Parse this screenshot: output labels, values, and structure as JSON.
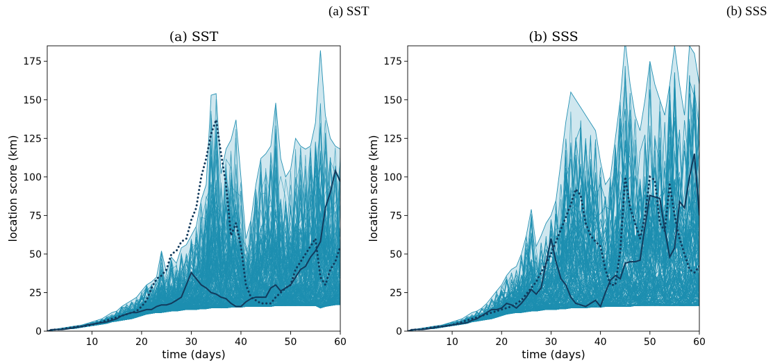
{
  "figure": {
    "top_caption_left": "(a) SST",
    "top_caption_right": "(b) SSS"
  },
  "style": {
    "fan_line_color": "#1e8fb0",
    "envelope_fill": "#cfe7ef",
    "envelope_edge": "#2591b3",
    "median_line_color": "#123a5c",
    "dotted_line_color": "#123a5c"
  },
  "chart_data": [
    {
      "type": "line",
      "title": "(a) SST",
      "xlabel": "time (days)",
      "ylabel": "location score (km)",
      "xlim": [
        1,
        60
      ],
      "ylim": [
        0,
        185
      ],
      "xticks": [
        10,
        20,
        30,
        40,
        50,
        60
      ],
      "yticks": [
        0,
        25,
        50,
        75,
        100,
        125,
        150,
        175
      ],
      "grid": false,
      "ensemble_size": 300,
      "series": [
        {
          "role": "ensemble-max",
          "x": [
            1,
            2,
            3,
            4,
            5,
            6,
            7,
            8,
            9,
            10,
            11,
            12,
            13,
            14,
            15,
            16,
            17,
            18,
            19,
            20,
            21,
            22,
            23,
            24,
            25,
            26,
            27,
            28,
            29,
            30,
            31,
            32,
            33,
            34,
            35,
            36,
            37,
            38,
            39,
            40,
            41,
            42,
            43,
            44,
            45,
            46,
            47,
            48,
            49,
            50,
            51,
            52,
            53,
            54,
            55,
            56,
            57,
            58,
            59,
            60
          ],
          "values": [
            0,
            1,
            1.5,
            2,
            2.5,
            3,
            3.5,
            4,
            5,
            6,
            7,
            8,
            10,
            12,
            13,
            16,
            18,
            20,
            22,
            26,
            30,
            32,
            35,
            52,
            38,
            48,
            44,
            54,
            56,
            62,
            68,
            85,
            95,
            153,
            154,
            102,
            118,
            124,
            137,
            100,
            60,
            72,
            95,
            112,
            115,
            120,
            148,
            112,
            100,
            105,
            125,
            120,
            118,
            120,
            135,
            182,
            140,
            125,
            120,
            118
          ]
        },
        {
          "role": "ensemble-min",
          "x": [
            1,
            2,
            3,
            4,
            5,
            6,
            7,
            8,
            9,
            10,
            11,
            12,
            13,
            14,
            15,
            16,
            17,
            18,
            19,
            20,
            21,
            22,
            23,
            24,
            25,
            26,
            27,
            28,
            29,
            30,
            31,
            32,
            33,
            34,
            35,
            36,
            37,
            38,
            39,
            40,
            41,
            42,
            43,
            44,
            45,
            46,
            47,
            48,
            49,
            50,
            51,
            52,
            53,
            54,
            55,
            56,
            57,
            58,
            59,
            60
          ],
          "values": [
            0,
            0.5,
            1,
            1,
            1.5,
            1.5,
            2,
            2.5,
            3,
            3.5,
            4,
            4.5,
            5,
            6,
            6.5,
            7,
            7.5,
            8,
            9,
            10,
            11,
            11.5,
            12,
            12,
            12.5,
            13,
            13,
            13.5,
            14,
            14,
            14,
            14.5,
            14.5,
            15,
            15,
            15,
            15,
            15.5,
            15.5,
            15.5,
            16,
            16,
            16,
            16,
            16,
            16,
            16.5,
            16.5,
            16.5,
            16.5,
            16.5,
            16.5,
            16.5,
            16.5,
            16.5,
            15,
            16,
            16.5,
            17,
            17
          ]
        },
        {
          "role": "median",
          "x": [
            1,
            2,
            3,
            4,
            5,
            6,
            7,
            8,
            9,
            10,
            11,
            12,
            13,
            14,
            15,
            16,
            17,
            18,
            19,
            20,
            21,
            22,
            23,
            24,
            25,
            26,
            27,
            28,
            29,
            30,
            31,
            32,
            33,
            34,
            35,
            36,
            37,
            38,
            39,
            40,
            41,
            42,
            43,
            44,
            45,
            46,
            47,
            48,
            49,
            50,
            51,
            52,
            53,
            54,
            55,
            56,
            57,
            58,
            59,
            60
          ],
          "values": [
            0,
            1,
            1,
            1,
            1.5,
            2,
            2.5,
            3,
            4,
            4.5,
            5,
            5.5,
            6,
            7,
            8,
            10,
            11,
            12,
            12,
            13,
            14,
            14,
            16,
            17,
            17,
            18,
            20,
            22,
            30,
            38,
            34,
            30,
            28,
            25,
            24,
            22,
            21,
            18,
            16,
            16,
            19,
            21,
            22,
            22,
            22,
            28,
            30,
            26,
            28,
            30,
            35,
            40,
            42,
            48,
            52,
            58,
            80,
            90,
            104,
            97
          ]
        },
        {
          "role": "dotted",
          "x": [
            1,
            2,
            3,
            4,
            5,
            6,
            7,
            8,
            9,
            10,
            11,
            12,
            13,
            14,
            15,
            16,
            17,
            18,
            19,
            20,
            21,
            22,
            23,
            24,
            25,
            26,
            27,
            28,
            29,
            30,
            31,
            32,
            33,
            34,
            35,
            36,
            37,
            38,
            39,
            40,
            41,
            42,
            43,
            44,
            45,
            46,
            47,
            48,
            49,
            50,
            51,
            52,
            53,
            54,
            55,
            56,
            57,
            58,
            59,
            60
          ],
          "values": [
            0,
            1,
            1,
            1.5,
            2,
            2.5,
            3,
            3,
            3.5,
            4,
            5,
            6,
            7,
            8,
            9,
            10,
            11,
            12,
            13,
            16,
            20,
            28,
            34,
            36,
            40,
            50,
            52,
            58,
            60,
            72,
            80,
            100,
            112,
            128,
            137,
            115,
            95,
            62,
            70,
            55,
            30,
            22,
            20,
            18,
            18,
            18,
            22,
            25,
            28,
            30,
            40,
            45,
            50,
            55,
            60,
            35,
            30,
            40,
            45,
            55
          ]
        }
      ]
    },
    {
      "type": "line",
      "title": "(b) SSS",
      "xlabel": "time (days)",
      "ylabel": "location score (km)",
      "xlim": [
        1,
        60
      ],
      "ylim": [
        0,
        185
      ],
      "xticks": [
        10,
        20,
        30,
        40,
        50,
        60
      ],
      "yticks": [
        0,
        25,
        50,
        75,
        100,
        125,
        150,
        175
      ],
      "grid": false,
      "ensemble_size": 300,
      "series": [
        {
          "role": "ensemble-max",
          "x": [
            1,
            2,
            3,
            4,
            5,
            6,
            7,
            8,
            9,
            10,
            11,
            12,
            13,
            14,
            15,
            16,
            17,
            18,
            19,
            20,
            21,
            22,
            23,
            24,
            25,
            26,
            27,
            28,
            29,
            30,
            31,
            32,
            33,
            34,
            35,
            36,
            37,
            38,
            39,
            40,
            41,
            42,
            43,
            44,
            45,
            46,
            47,
            48,
            49,
            50,
            51,
            52,
            53,
            54,
            55,
            56,
            57,
            58,
            59,
            60
          ],
          "values": [
            0,
            1,
            1.5,
            2,
            2.5,
            3,
            3.5,
            4,
            5,
            6,
            7,
            8,
            10,
            12,
            13,
            15,
            18,
            22,
            26,
            30,
            36,
            40,
            42,
            50,
            62,
            79,
            55,
            62,
            70,
            75,
            85,
            110,
            136,
            155,
            150,
            145,
            140,
            135,
            130,
            110,
            95,
            100,
            125,
            150,
            188,
            160,
            140,
            130,
            150,
            175,
            160,
            150,
            140,
            160,
            185,
            160,
            140,
            185,
            180,
            160
          ]
        },
        {
          "role": "ensemble-min",
          "x": [
            1,
            2,
            3,
            4,
            5,
            6,
            7,
            8,
            9,
            10,
            11,
            12,
            13,
            14,
            15,
            16,
            17,
            18,
            19,
            20,
            21,
            22,
            23,
            24,
            25,
            26,
            27,
            28,
            29,
            30,
            31,
            32,
            33,
            34,
            35,
            36,
            37,
            38,
            39,
            40,
            41,
            42,
            43,
            44,
            45,
            46,
            47,
            48,
            49,
            50,
            51,
            52,
            53,
            54,
            55,
            56,
            57,
            58,
            59,
            60
          ],
          "values": [
            0,
            0.5,
            1,
            1,
            1.5,
            1.5,
            2,
            2.5,
            3,
            3.5,
            4,
            4.5,
            5,
            6,
            6.5,
            7,
            7.5,
            8,
            9,
            10,
            11,
            11.5,
            12,
            12,
            12.5,
            13,
            13,
            13.5,
            14,
            14,
            14,
            14.5,
            14.5,
            15,
            15,
            15,
            15,
            15.5,
            15.5,
            15.5,
            16,
            16,
            16,
            16,
            16,
            16,
            16.5,
            16.5,
            16.5,
            16.5,
            16.5,
            16.5,
            16.5,
            16.5,
            16.5,
            16.5,
            16.5,
            16.5,
            16.5,
            16.5
          ]
        },
        {
          "role": "median",
          "x": [
            1,
            2,
            3,
            4,
            5,
            6,
            7,
            8,
            9,
            10,
            11,
            12,
            13,
            14,
            15,
            16,
            17,
            18,
            19,
            20,
            21,
            22,
            23,
            24,
            25,
            26,
            27,
            28,
            29,
            30,
            31,
            32,
            33,
            34,
            35,
            36,
            37,
            38,
            39,
            40,
            41,
            42,
            43,
            44,
            45,
            46,
            47,
            48,
            49,
            50,
            51,
            52,
            53,
            54,
            55,
            56,
            57,
            58,
            59,
            60
          ],
          "values": [
            0,
            1,
            1,
            1,
            1.5,
            2,
            2.5,
            3,
            3.5,
            4,
            4.5,
            5,
            5.5,
            7,
            8,
            10,
            12,
            14,
            14,
            15,
            18,
            17,
            15,
            18,
            22,
            27,
            24,
            28,
            44,
            60,
            45,
            34,
            30,
            22,
            18,
            17,
            16,
            18,
            20,
            16,
            25,
            33,
            36,
            34,
            44,
            45,
            45,
            46,
            68,
            88,
            87,
            86,
            66,
            48,
            54,
            84,
            80,
            100,
            115,
            75
          ]
        },
        {
          "role": "dotted",
          "x": [
            1,
            2,
            3,
            4,
            5,
            6,
            7,
            8,
            9,
            10,
            11,
            12,
            13,
            14,
            15,
            16,
            17,
            18,
            19,
            20,
            21,
            22,
            23,
            24,
            25,
            26,
            27,
            28,
            29,
            30,
            31,
            32,
            33,
            34,
            35,
            36,
            37,
            38,
            39,
            40,
            41,
            42,
            43,
            44,
            45,
            46,
            47,
            48,
            49,
            50,
            51,
            52,
            53,
            54,
            55,
            56,
            57,
            58,
            59,
            60
          ],
          "values": [
            0,
            1,
            1,
            1.5,
            2,
            2.5,
            3,
            3,
            3.5,
            4,
            5,
            6,
            7,
            8,
            9,
            10,
            11,
            12,
            13,
            14,
            15,
            16,
            18,
            20,
            24,
            28,
            32,
            38,
            44,
            50,
            58,
            66,
            74,
            82,
            92,
            88,
            70,
            62,
            58,
            55,
            40,
            30,
            30,
            52,
            100,
            80,
            70,
            60,
            75,
            100,
            98,
            70,
            65,
            95,
            75,
            60,
            50,
            40,
            38,
            42
          ]
        }
      ]
    }
  ]
}
